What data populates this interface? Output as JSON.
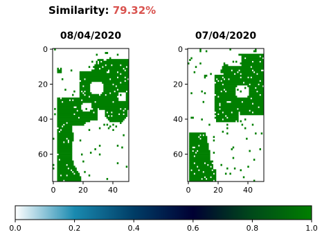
{
  "header": {
    "label": "Similarity:",
    "value": "79.32%",
    "value_color": "#d9534f"
  },
  "chart_data": [
    {
      "type": "heatmap",
      "title": "08/04/2020",
      "grid_shape_rows_cols": [
        76,
        51
      ],
      "x_ticks": [
        "0",
        "20",
        "40"
      ],
      "y_ticks": [
        "0",
        "20",
        "40",
        "60"
      ],
      "colormap": "ocean_r",
      "value_range": [
        0.0,
        1.0
      ],
      "colors": {
        "zero": "#ffffff",
        "one": "#007f00"
      }
    },
    {
      "type": "heatmap",
      "title": "07/04/2020",
      "grid_shape_rows_cols": [
        76,
        51
      ],
      "x_ticks": [
        "0",
        "20",
        "40"
      ],
      "y_ticks": [
        "0",
        "20",
        "40",
        "60"
      ],
      "colormap": "ocean_r",
      "value_range": [
        0.0,
        1.0
      ],
      "colors": {
        "zero": "#ffffff",
        "one": "#007f00"
      }
    }
  ],
  "colorbar": {
    "ticks": [
      "0.0",
      "0.2",
      "0.4",
      "0.6",
      "0.8",
      "1.0"
    ],
    "gradient_stops": [
      "#ffffff",
      "#1a8ab0",
      "#003d66",
      "#000033",
      "#004a1a",
      "#007f00"
    ]
  }
}
